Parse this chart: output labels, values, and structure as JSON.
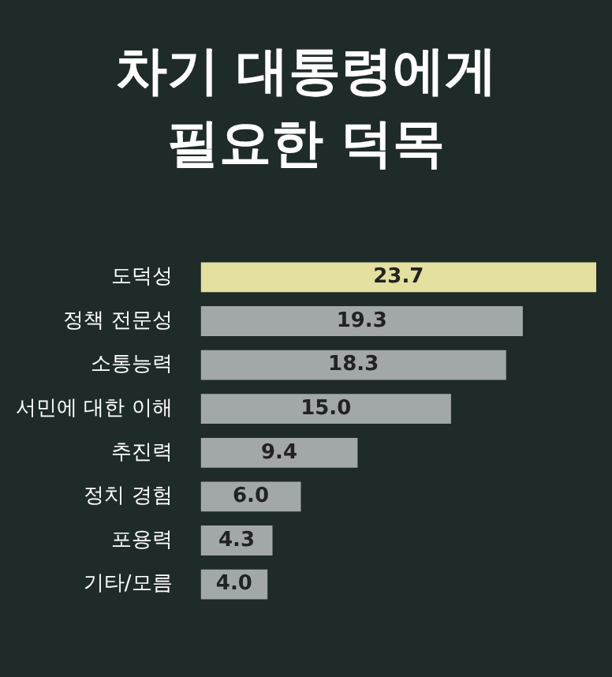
{
  "chart_data": {
    "type": "bar",
    "orientation": "horizontal",
    "title": "차기 대통령에게 필요한 덕목",
    "categories": [
      "도덕성",
      "정책 전문성",
      "소통능력",
      "서민에 대한 이해",
      "추진력",
      "정치 경험",
      "포용력",
      "기타/모름"
    ],
    "values": [
      23.7,
      19.3,
      18.3,
      15.0,
      9.4,
      6.0,
      4.3,
      4.0
    ],
    "colors": [
      "#e3e0a0",
      "#a2a7a8",
      "#a2a7a8",
      "#a2a7a8",
      "#a2a7a8",
      "#a2a7a8",
      "#a2a7a8",
      "#a2a7a8"
    ],
    "value_labels": [
      "23.7",
      "19.3",
      "18.3",
      "15.0",
      "9.4",
      "6.0",
      "4.3",
      "4.0"
    ],
    "xlim": [
      0,
      23.7
    ],
    "tick_labels": "y"
  }
}
